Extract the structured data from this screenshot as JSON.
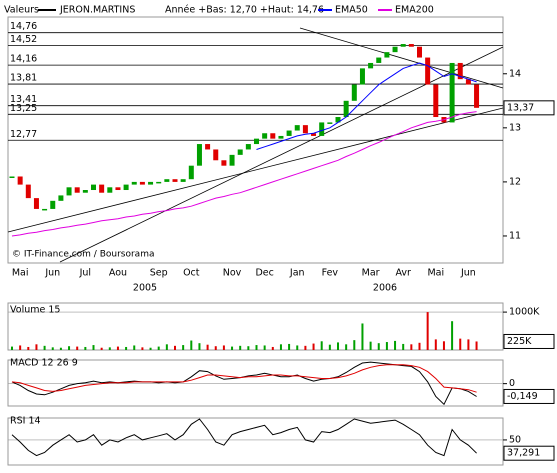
{
  "header": {
    "title": "Valeurs",
    "subtitle": "Année +Bas: 12,70 +Haut: 14,76",
    "credit": "© IT-Finance.com / Boursorama",
    "years": [
      "2005",
      "2006"
    ]
  },
  "chart_data": [
    {
      "type": "price-bars",
      "categories": [
        null,
        "Mai",
        null,
        null,
        null,
        "Jun",
        null,
        null,
        null,
        "Jul",
        null,
        null,
        null,
        "Aou",
        null,
        null,
        null,
        null,
        "Sep",
        null,
        null,
        null,
        "Oct",
        null,
        null,
        null,
        null,
        "Nov",
        null,
        null,
        null,
        "Dec",
        null,
        null,
        null,
        "Jan",
        null,
        null,
        null,
        "Fev",
        null,
        null,
        null,
        null,
        "Mar",
        null,
        null,
        null,
        "Avr",
        null,
        null,
        null,
        "Mai",
        null,
        null,
        null,
        "Jun",
        null
      ],
      "series": [
        {
          "name": "JERON.MARTINS",
          "color": "#000000",
          "up_color": "#00a000",
          "down_color": "#e00000",
          "values": [
            12.1,
            11.95,
            11.7,
            11.5,
            11.5,
            11.65,
            11.75,
            11.9,
            11.8,
            11.85,
            11.95,
            11.8,
            11.9,
            11.85,
            11.95,
            12.0,
            11.95,
            12.0,
            12.0,
            12.05,
            12.0,
            12.05,
            12.3,
            12.7,
            12.6,
            12.4,
            12.3,
            12.5,
            12.6,
            12.7,
            12.8,
            12.9,
            12.8,
            12.85,
            12.95,
            13.05,
            12.9,
            12.85,
            13.1,
            13.1,
            13.2,
            13.5,
            13.8,
            14.1,
            14.2,
            14.3,
            14.4,
            14.5,
            14.55,
            14.5,
            14.3,
            13.8,
            13.2,
            13.1,
            14.2,
            13.9,
            13.8,
            13.37
          ]
        },
        {
          "name": "EMA50",
          "color": "#0000ff",
          "values": [
            null,
            null,
            null,
            null,
            null,
            null,
            null,
            null,
            null,
            null,
            null,
            null,
            null,
            null,
            null,
            null,
            null,
            null,
            null,
            null,
            null,
            null,
            null,
            null,
            null,
            null,
            null,
            null,
            null,
            null,
            12.6,
            12.65,
            12.7,
            12.75,
            12.8,
            12.85,
            12.88,
            12.9,
            12.95,
            13.0,
            13.1,
            13.2,
            13.35,
            13.5,
            13.65,
            13.8,
            13.9,
            14.0,
            14.1,
            14.15,
            14.2,
            14.15,
            14.05,
            13.95,
            14.0,
            13.95,
            13.9,
            13.85
          ]
        },
        {
          "name": "EMA200",
          "color": "#e000e0",
          "values": [
            11.0,
            11.02,
            11.05,
            11.07,
            11.1,
            11.12,
            11.15,
            11.17,
            11.2,
            11.22,
            11.25,
            11.28,
            11.3,
            11.32,
            11.35,
            11.37,
            11.4,
            11.42,
            11.45,
            11.47,
            11.5,
            11.52,
            11.55,
            11.6,
            11.65,
            11.7,
            11.73,
            11.77,
            11.8,
            11.85,
            11.9,
            11.95,
            12.0,
            12.05,
            12.1,
            12.15,
            12.2,
            12.25,
            12.3,
            12.35,
            12.4,
            12.47,
            12.53,
            12.6,
            12.67,
            12.73,
            12.8,
            12.87,
            12.93,
            13.0,
            13.05,
            13.1,
            13.12,
            13.15,
            13.2,
            13.25,
            13.28,
            13.3
          ]
        }
      ],
      "ylim": [
        10.5,
        15.05
      ],
      "yticks": [
        11,
        12,
        13,
        14
      ],
      "levels": [
        {
          "value": 14.76,
          "label": "14,76"
        },
        {
          "value": 14.52,
          "label": "14,52"
        },
        {
          "value": 14.16,
          "label": "14,16"
        },
        {
          "value": 13.81,
          "label": "13,81"
        },
        {
          "value": 13.41,
          "label": "13,41"
        },
        {
          "value": 13.25,
          "label": "13,25"
        },
        {
          "value": 12.77,
          "label": "12,77"
        }
      ],
      "last": {
        "value": 13.37,
        "label": "13,37"
      }
    },
    {
      "type": "bar",
      "title": "Volume 15",
      "color": "#00a000",
      "values": [
        90000,
        120000,
        80000,
        150000,
        110000,
        70000,
        60000,
        100000,
        90000,
        80000,
        130000,
        60000,
        70000,
        90000,
        80000,
        120000,
        70000,
        60000,
        90000,
        150000,
        110000,
        130000,
        250000,
        180000,
        140000,
        100000,
        120000,
        90000,
        110000,
        100000,
        130000,
        120000,
        80000,
        150000,
        160000,
        120000,
        110000,
        170000,
        230000,
        140000,
        200000,
        150000,
        260000,
        700000,
        220000,
        180000,
        210000,
        240000,
        160000,
        150000,
        190000,
        1000000,
        280000,
        230000,
        760000,
        300000,
        280000,
        225000
      ],
      "ylim": [
        0,
        1240000
      ],
      "yticks": [
        {
          "value": 1000000,
          "label": "1000K"
        }
      ],
      "last": {
        "value": 225000,
        "label": "225K"
      }
    },
    {
      "type": "line",
      "title": "MACD 12 26 9",
      "series": [
        {
          "color": "#000000",
          "values": [
            0.02,
            -0.02,
            -0.08,
            -0.12,
            -0.13,
            -0.1,
            -0.06,
            -0.02,
            0.0,
            0.01,
            0.03,
            0.01,
            0.02,
            0.01,
            0.02,
            0.03,
            0.02,
            0.02,
            0.01,
            0.02,
            0.01,
            0.02,
            0.08,
            0.15,
            0.14,
            0.09,
            0.05,
            0.06,
            0.07,
            0.09,
            0.1,
            0.12,
            0.1,
            0.08,
            0.08,
            0.1,
            0.06,
            0.03,
            0.05,
            0.06,
            0.08,
            0.13,
            0.19,
            0.24,
            0.25,
            0.24,
            0.23,
            0.22,
            0.21,
            0.2,
            0.14,
            0.02,
            -0.15,
            -0.24,
            -0.05,
            -0.06,
            -0.09,
            -0.149
          ]
        },
        {
          "color": "#e00000",
          "values": [
            0.02,
            0.01,
            -0.02,
            -0.05,
            -0.08,
            -0.09,
            -0.08,
            -0.06,
            -0.04,
            -0.02,
            -0.01,
            0.0,
            0.01,
            0.01,
            0.01,
            0.02,
            0.02,
            0.02,
            0.02,
            0.02,
            0.02,
            0.02,
            0.04,
            0.07,
            0.1,
            0.1,
            0.09,
            0.08,
            0.07,
            0.08,
            0.08,
            0.09,
            0.1,
            0.1,
            0.09,
            0.09,
            0.08,
            0.07,
            0.06,
            0.06,
            0.07,
            0.09,
            0.12,
            0.16,
            0.19,
            0.21,
            0.22,
            0.22,
            0.22,
            0.21,
            0.19,
            0.14,
            0.06,
            -0.04,
            -0.05,
            -0.06,
            -0.07,
            -0.1
          ]
        }
      ],
      "ylim": [
        -0.26,
        0.275
      ],
      "yticks": [
        0
      ],
      "last": {
        "value": -0.149,
        "label": "-0,149"
      }
    },
    {
      "type": "line",
      "title": "RSI 14",
      "series": [
        {
          "color": "#000000",
          "values": [
            55,
            48,
            40,
            35,
            38,
            45,
            50,
            55,
            48,
            50,
            55,
            45,
            50,
            48,
            52,
            55,
            50,
            52,
            54,
            56,
            50,
            55,
            65,
            70,
            60,
            48,
            45,
            55,
            58,
            60,
            62,
            64,
            55,
            57,
            60,
            62,
            50,
            48,
            58,
            57,
            60,
            65,
            70,
            68,
            66,
            67,
            68,
            69,
            65,
            60,
            55,
            45,
            38,
            35,
            60,
            50,
            45,
            37.291
          ]
        }
      ],
      "ylim": [
        26,
        71
      ],
      "yticks": [
        50
      ],
      "last": {
        "value": 37.291,
        "label": "37,291"
      }
    }
  ]
}
